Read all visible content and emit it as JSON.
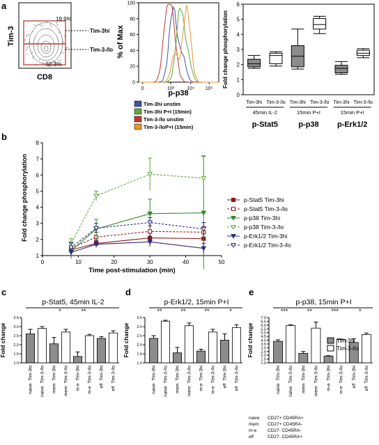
{
  "panels": {
    "a": "a",
    "b": "b",
    "c": "c",
    "d": "d",
    "e": "e"
  },
  "colors": {
    "blue": "#3b55a8",
    "green": "#5fa83a",
    "red": "#c0392b",
    "orange": "#e8962d",
    "maroon": "#8b1a1a",
    "gray": "#888888"
  },
  "flow": {
    "ylabel": "Tim-3",
    "xlabel": "CD8",
    "gate_hi_pct": "19.9%",
    "gate_lo_pct": "50.8%",
    "gate_hi_label": "Tim-3hi",
    "gate_lo_label": "Tim-3-/lo"
  },
  "histogram": {
    "ylabel": "% of Max",
    "xlabel": "p-p38",
    "yticks": [
      "0",
      "20",
      "40",
      "60",
      "80",
      "100"
    ],
    "xticks": [
      "0",
      "10³",
      "10⁴",
      "10⁵"
    ],
    "legend": [
      {
        "label": "Tim-3hi unstim",
        "color": "#3b55a8"
      },
      {
        "label": "Tim-3hi P+I (15min)",
        "color": "#5fa83a"
      },
      {
        "label": "Tim-3-/lo unstim",
        "color": "#c0392b"
      },
      {
        "label": "Tim-3-/loP+I (15min)",
        "color": "#e8962d"
      }
    ]
  },
  "chart_data": [
    {
      "type": "box",
      "ylabel": "Fold change phosphorylation",
      "ylim": [
        0,
        6
      ],
      "yticks": [
        "0",
        "1",
        "2",
        "3",
        "4",
        "5",
        "6"
      ],
      "categories": [
        "Tim-3hi",
        "Tim-3-/lo",
        "Tim-3hi",
        "Tim-3-/lo",
        "Tim-3hi",
        "Tim-3-/lo"
      ],
      "groups": [
        {
          "condition": "45min IL-2",
          "name": "p-Stat5"
        },
        {
          "condition": "15min P+I",
          "name": "p-p38"
        },
        {
          "condition": "15min P+I",
          "name": "p-Erk1/2"
        }
      ],
      "boxes": [
        {
          "min": 1.75,
          "q1": 1.85,
          "median": 2.05,
          "q3": 2.35,
          "max": 2.6,
          "fill": "gray"
        },
        {
          "min": 1.9,
          "q1": 2.05,
          "median": 2.6,
          "q3": 2.75,
          "max": 2.85,
          "fill": "white"
        },
        {
          "min": 1.7,
          "q1": 1.85,
          "median": 2.55,
          "q3": 3.25,
          "max": 4.35,
          "fill": "gray"
        },
        {
          "min": 4.05,
          "q1": 4.35,
          "median": 4.65,
          "q3": 5.05,
          "max": 5.2,
          "fill": "white"
        },
        {
          "min": 1.35,
          "q1": 1.45,
          "median": 1.75,
          "q3": 1.95,
          "max": 2.2,
          "fill": "gray"
        },
        {
          "min": 2.45,
          "q1": 2.6,
          "median": 2.75,
          "q3": 2.95,
          "max": 3.05,
          "fill": "white"
        }
      ]
    },
    {
      "type": "line",
      "ylabel": "Fold change phosphorylation",
      "xlabel": "Time post-stimulation (min)",
      "xlim": [
        0,
        50
      ],
      "ylim": [
        1,
        8
      ],
      "xticks": [
        "0",
        "10",
        "20",
        "30",
        "40",
        "50"
      ],
      "yticks": [
        "1",
        "2",
        "3",
        "4",
        "5",
        "6",
        "7",
        "8"
      ],
      "x": [
        8,
        15,
        30,
        45
      ],
      "series": [
        {
          "name": "p-Stat5 Tim-3hi",
          "color": "#8b1a1a",
          "dash": false,
          "marker": "square-filled",
          "values": [
            1.35,
            1.75,
            2.1,
            2.05
          ],
          "err": [
            0.25,
            0.2,
            0.3,
            0.3
          ]
        },
        {
          "name": "p-Stat5 Tim-3-/lo",
          "color": "#8b1a1a",
          "dash": true,
          "marker": "square-open",
          "values": [
            1.45,
            2.15,
            2.5,
            2.45
          ],
          "err": [
            0.3,
            0.3,
            0.35,
            0.35
          ]
        },
        {
          "name": "p-p38 Tim-3hi",
          "color": "#2e8b2e",
          "dash": false,
          "marker": "triangle-filled",
          "values": [
            1.3,
            2.65,
            3.6,
            3.65
          ],
          "err": [
            0.5,
            0.6,
            0.9,
            3.5
          ]
        },
        {
          "name": "p-p38 Tim-3-/lo",
          "color": "#5fa83a",
          "dash": true,
          "marker": "triangle-open",
          "values": [
            1.75,
            4.7,
            6.05,
            5.8
          ],
          "err": [
            0.3,
            0.3,
            1.0,
            1.4
          ]
        },
        {
          "name": "p-Erk1/2 Tim-3hi",
          "color": "#2b2d7a",
          "dash": false,
          "marker": "triangle-filled",
          "values": [
            1.2,
            1.7,
            1.85,
            1.45
          ],
          "err": [
            0.2,
            0.2,
            0.3,
            0.3
          ]
        },
        {
          "name": "p-Erk1/2 Tim-3-/lo",
          "color": "#2b2d7a",
          "dash": true,
          "marker": "triangle-open",
          "values": [
            1.5,
            2.7,
            3.05,
            2.65
          ],
          "err": [
            0.3,
            0.3,
            0.3,
            0.4
          ]
        }
      ]
    },
    {
      "type": "bar",
      "title": "p-Stat5, 45min IL-2",
      "ylabel": "Fold change",
      "ylim": [
        1.0,
        3.5
      ],
      "yticks": [
        "1.0",
        "1.5",
        "2.0",
        "2.5",
        "3.0",
        "3.5"
      ],
      "categories": [
        "naive",
        "naive",
        "mem",
        "mem",
        "m-e",
        "m-e",
        "eff",
        "eff"
      ],
      "cell_labels": [
        "Tim-3hi",
        "Tim-3-/lo",
        "Tim-3hi",
        "Tim-3-/lo",
        "Tim-3hi",
        "Tim-3-/lo",
        "Tim-3hi",
        "Tim-3-/lo"
      ],
      "values": [
        2.6,
        2.9,
        2.05,
        2.7,
        1.35,
        2.5,
        2.35,
        2.65
      ],
      "err": [
        0.25,
        0.1,
        0.35,
        0.15,
        0.25,
        0.07,
        0.1,
        0.12
      ],
      "significance": [
        "",
        "*",
        "**",
        ""
      ]
    },
    {
      "type": "bar",
      "title": "p-Erk1/2, 15min P+I",
      "ylabel": "Fold change",
      "ylim": [
        1.0,
        3.5
      ],
      "yticks": [
        "1.0",
        "1.5",
        "2.0",
        "2.5",
        "3.0",
        "3.5"
      ],
      "categories": [
        "naive",
        "naive",
        "mem",
        "mem",
        "m-e",
        "m-e",
        "eff",
        "eff"
      ],
      "cell_labels": [
        "Tim-3hi",
        "Tim-3-/lo",
        "Tim-3hi",
        "Tim-3-/lo",
        "Tim-3hi",
        "Tim-3-/lo",
        "Tim-3hi",
        "Tim-3-/lo"
      ],
      "values": [
        2.35,
        3.3,
        1.55,
        3.05,
        1.65,
        2.7,
        2.25,
        2.95
      ],
      "err": [
        0.15,
        0.05,
        0.3,
        0.15,
        0.1,
        0.15,
        0.35,
        0.15
      ],
      "significance": [
        "**",
        "**",
        "**",
        "*"
      ]
    },
    {
      "type": "bar",
      "title": "p-p38, 15min P+I",
      "ylabel": "Fold change",
      "ylim": [
        1.0,
        7.0
      ],
      "yticks": [
        "1.0",
        "1.5",
        "2.0",
        "2.5",
        "3.0",
        "3.5",
        "4.0",
        "4.5",
        "5.0",
        "5.5",
        "6.0",
        "6.5",
        "7.0"
      ],
      "categories": [
        "naive",
        "naive",
        "mem",
        "mem",
        "m-e",
        "m-e",
        "eff",
        "eff"
      ],
      "cell_labels": [
        "Tim-3hi",
        "Tim-3-/lo",
        "Tim-3hi",
        "Tim-3-/lo",
        "Tim-3hi",
        "Tim-3-/lo",
        "Tim-3hi",
        "Tim-3-/lo"
      ],
      "values": [
        3.85,
        5.95,
        2.25,
        5.6,
        1.9,
        4.1,
        3.7,
        4.75
      ],
      "err": [
        0.2,
        0.1,
        0.25,
        0.8,
        0.05,
        0.05,
        0.5,
        0.2
      ],
      "significance": [
        "***",
        "**",
        "***",
        "*"
      ],
      "legend": [
        {
          "label": "Tim-3hi",
          "fill": "gray"
        },
        {
          "label": "Tim-3-/lo",
          "fill": "white"
        }
      ]
    }
  ],
  "subset_legend": [
    {
      "key": "naive",
      "desc": "CD27+ CD45RA+"
    },
    {
      "key": "mem",
      "desc": "CD27+ CD45RA-"
    },
    {
      "key": "m-e",
      "desc": "CD27- CD45RA-"
    },
    {
      "key": "eff",
      "desc": "CD27- CD45RA+"
    }
  ]
}
